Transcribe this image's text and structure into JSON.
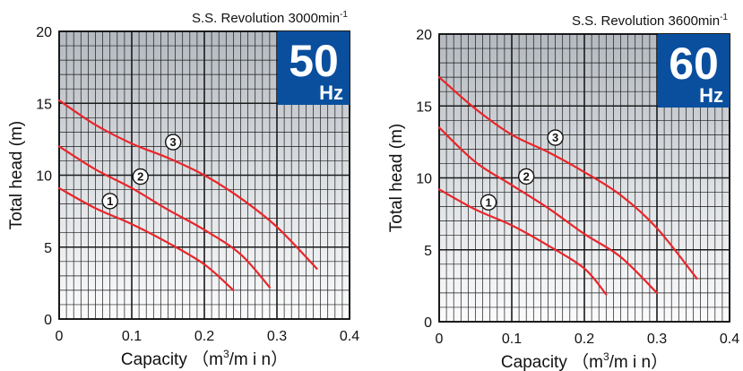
{
  "chart_data": [
    {
      "type": "line",
      "title": "S.S. Revolution 3000min-1",
      "title_main": "S.S. Revolution 3000min",
      "title_sup": "-1",
      "badge": {
        "number": "50",
        "unit": "Hz",
        "color": "#0a4f9e"
      },
      "xlabel_main": "Capacity （m",
      "xlabel_sup": "3",
      "xlabel_tail": "/m i n）",
      "ylabel": "Total head (m)",
      "xlim": [
        0,
        0.4
      ],
      "ylim": [
        0,
        20
      ],
      "x_ticks": [
        "0",
        "0.1",
        "0.2",
        "0.3",
        "0.4"
      ],
      "y_ticks": [
        "0",
        "5",
        "10",
        "15",
        "20"
      ],
      "grid": true,
      "line_color": "#e8262b",
      "series": [
        {
          "label": "1",
          "points": [
            [
              0,
              9.1
            ],
            [
              0.05,
              7.7
            ],
            [
              0.1,
              6.6
            ],
            [
              0.15,
              5.3
            ],
            [
              0.2,
              3.8
            ],
            [
              0.24,
              2.0
            ]
          ],
          "label_at": [
            0.07,
            8.2
          ]
        },
        {
          "label": "2",
          "points": [
            [
              0,
              12.0
            ],
            [
              0.05,
              10.4
            ],
            [
              0.1,
              9.1
            ],
            [
              0.15,
              7.6
            ],
            [
              0.2,
              6.2
            ],
            [
              0.25,
              4.5
            ],
            [
              0.29,
              2.2
            ]
          ],
          "label_at": [
            0.112,
            9.9
          ]
        },
        {
          "label": "3",
          "points": [
            [
              0,
              15.2
            ],
            [
              0.05,
              13.5
            ],
            [
              0.1,
              12.2
            ],
            [
              0.15,
              11.2
            ],
            [
              0.2,
              10.0
            ],
            [
              0.25,
              8.4
            ],
            [
              0.3,
              6.4
            ],
            [
              0.355,
              3.5
            ]
          ],
          "label_at": [
            0.157,
            12.3
          ]
        }
      ]
    },
    {
      "type": "line",
      "title": "S.S. Revolution 3600min-1",
      "title_main": "S.S. Revolution 3600min",
      "title_sup": "-1",
      "badge": {
        "number": "60",
        "unit": "Hz",
        "color": "#0a4f9e"
      },
      "xlabel_main": "Capacity （m",
      "xlabel_sup": "3",
      "xlabel_tail": "/m i n）",
      "ylabel": "Total head (m)",
      "xlim": [
        0,
        0.4
      ],
      "ylim": [
        0,
        20
      ],
      "x_ticks": [
        "0",
        "0.1",
        "0.2",
        "0.3",
        "0.4"
      ],
      "y_ticks": [
        "0",
        "5",
        "10",
        "15",
        "20"
      ],
      "grid": true,
      "line_color": "#e8262b",
      "series": [
        {
          "label": "1",
          "points": [
            [
              0,
              9.2
            ],
            [
              0.05,
              7.8
            ],
            [
              0.1,
              6.7
            ],
            [
              0.15,
              5.3
            ],
            [
              0.2,
              3.7
            ],
            [
              0.23,
              1.9
            ]
          ],
          "label_at": [
            0.068,
            8.3
          ]
        },
        {
          "label": "2",
          "points": [
            [
              0,
              13.5
            ],
            [
              0.05,
              11.1
            ],
            [
              0.1,
              9.5
            ],
            [
              0.15,
              7.9
            ],
            [
              0.2,
              6.1
            ],
            [
              0.25,
              4.5
            ],
            [
              0.3,
              2.0
            ]
          ],
          "label_at": [
            0.12,
            10.1
          ]
        },
        {
          "label": "3",
          "points": [
            [
              0,
              17.0
            ],
            [
              0.05,
              14.8
            ],
            [
              0.1,
              13.0
            ],
            [
              0.15,
              11.8
            ],
            [
              0.2,
              10.4
            ],
            [
              0.25,
              8.8
            ],
            [
              0.3,
              6.5
            ],
            [
              0.355,
              3.0
            ]
          ],
          "label_at": [
            0.16,
            12.8
          ]
        }
      ]
    }
  ]
}
